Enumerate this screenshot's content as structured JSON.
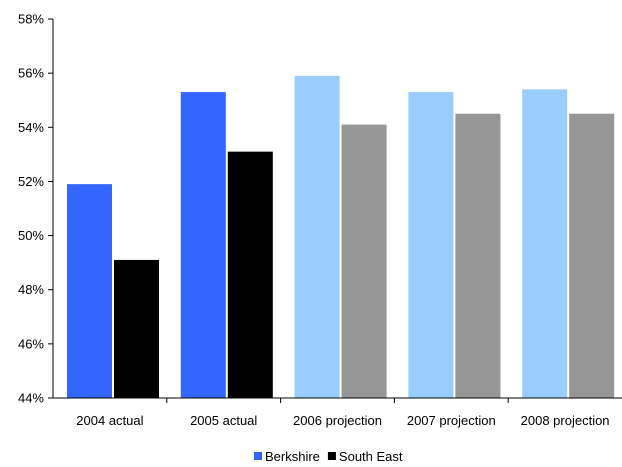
{
  "chart_data": {
    "type": "bar",
    "categories": [
      "2004 actual",
      "2005 actual",
      "2006 projection",
      "2007 projection",
      "2008 projection"
    ],
    "series": [
      {
        "name": "Berkshire",
        "values": [
          51.9,
          55.3,
          55.9,
          55.3,
          55.4
        ],
        "legend_color": "#3366FF",
        "colors": [
          "#3366FF",
          "#3366FF",
          "#99CCFF",
          "#99CCFF",
          "#99CCFF"
        ]
      },
      {
        "name": "South East",
        "values": [
          49.1,
          53.1,
          54.1,
          54.5,
          54.5
        ],
        "legend_color": "#000000",
        "colors": [
          "#000000",
          "#000000",
          "#969696",
          "#969696",
          "#969696"
        ]
      }
    ],
    "ylim": [
      44,
      58
    ],
    "yticks": [
      44,
      46,
      48,
      50,
      52,
      54,
      56,
      58
    ],
    "ytick_labels": [
      "44%",
      "46%",
      "48%",
      "50%",
      "52%",
      "54%",
      "56%",
      "58%"
    ],
    "title": "",
    "xlabel": "",
    "ylabel": "",
    "grid": false,
    "legend_position": "bottom"
  }
}
